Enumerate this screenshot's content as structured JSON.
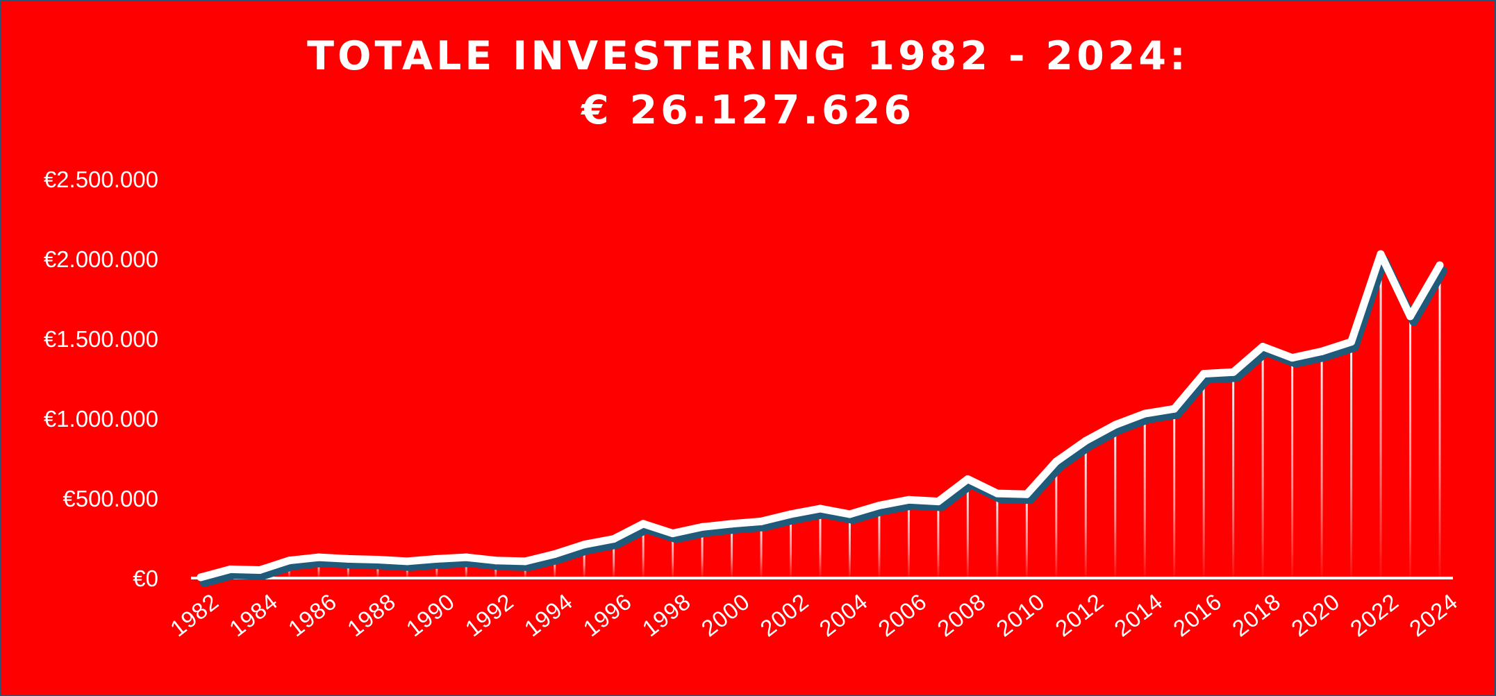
{
  "title": {
    "line1": "TOTALE INVESTERING 1982 - 2024:",
    "line2": "€ 26.127.626"
  },
  "colors": {
    "background": "#ff0000",
    "line": "#ffffff",
    "shadow": "#1f5a7a",
    "border": "#1f5a7a"
  },
  "chart_data": {
    "type": "line",
    "title": "TOTALE INVESTERING 1982 - 2024: € 26.127.626",
    "xlabel": "",
    "ylabel": "",
    "ylim": [
      0,
      2500000
    ],
    "y_ticks": [
      0,
      500000,
      1000000,
      1500000,
      2000000,
      2500000
    ],
    "y_tick_labels": [
      "€0",
      "€500.000",
      "€1.000.000",
      "€1.500.000",
      "€2.000.000",
      "€2.500.000"
    ],
    "x_tick_labels": [
      "1982",
      "1984",
      "1986",
      "1988",
      "1990",
      "1992",
      "1994",
      "1996",
      "1998",
      "2000",
      "2002",
      "2004",
      "2006",
      "2008",
      "2010",
      "2012",
      "2014",
      "2016",
      "2018",
      "2020",
      "2022",
      "2024"
    ],
    "grid": false,
    "x": [
      1982,
      1983,
      1984,
      1985,
      1986,
      1987,
      1988,
      1989,
      1990,
      1991,
      1992,
      1993,
      1994,
      1995,
      1996,
      1997,
      1998,
      1999,
      2000,
      2001,
      2002,
      2003,
      2004,
      2005,
      2006,
      2007,
      2008,
      2009,
      2010,
      2011,
      2012,
      2013,
      2014,
      2015,
      2016,
      2017,
      2018,
      2019,
      2020,
      2021,
      2022,
      2023,
      2024
    ],
    "series": [
      {
        "values": [
          5000,
          55000,
          50000,
          110000,
          130000,
          120000,
          115000,
          105000,
          120000,
          130000,
          110000,
          105000,
          150000,
          210000,
          245000,
          340000,
          280000,
          320000,
          340000,
          355000,
          400000,
          435000,
          400000,
          455000,
          490000,
          480000,
          620000,
          530000,
          525000,
          730000,
          860000,
          960000,
          1030000,
          1060000,
          1280000,
          1290000,
          1450000,
          1380000,
          1420000,
          1480000,
          2030000,
          1640000,
          1960000
        ]
      }
    ]
  }
}
